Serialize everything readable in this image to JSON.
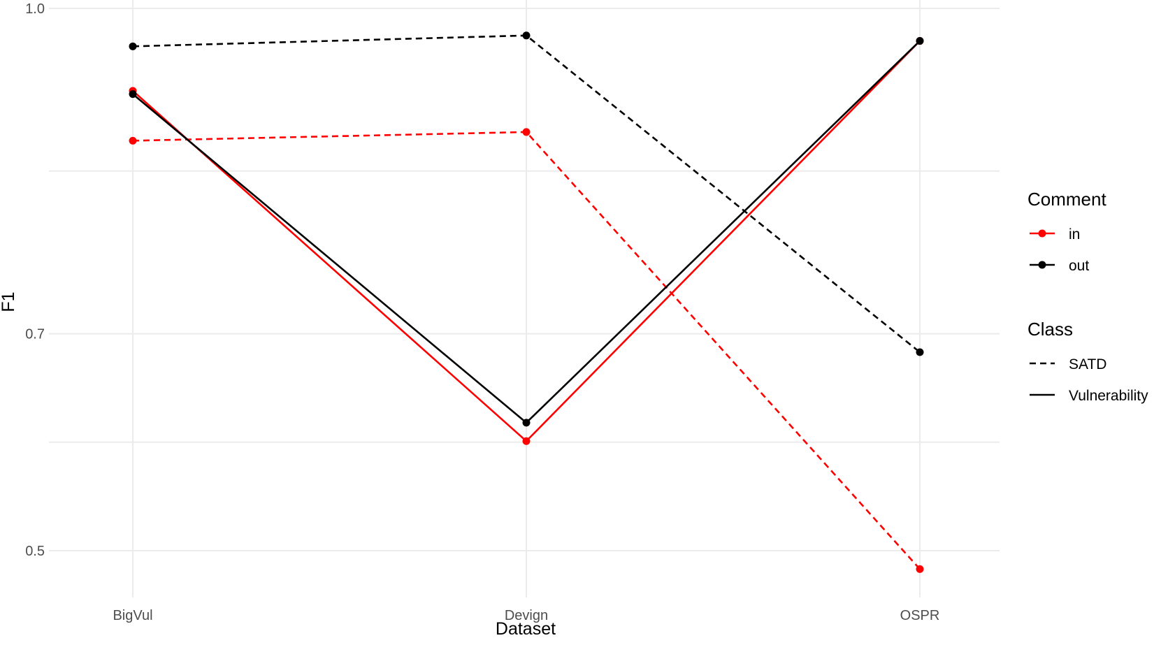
{
  "chart_data": {
    "type": "line",
    "title": "",
    "xlabel": "Dataset",
    "ylabel": "F1",
    "categories": [
      "BigVul",
      "Devign",
      "OSPR"
    ],
    "yticks": [
      0.5,
      0.7,
      1.0
    ],
    "ytick_labels": [
      "0.5",
      "0.7",
      "1.0"
    ],
    "ylim": [
      0.46,
      1.0
    ],
    "grid": true,
    "legend_position": "right",
    "colors": {
      "in": "#ff0000",
      "out": "#000000"
    },
    "legend": {
      "comment": {
        "title": "Comment",
        "items": [
          "in",
          "out"
        ]
      },
      "class": {
        "title": "Class",
        "items": [
          "SATD",
          "Vulnerability"
        ]
      }
    },
    "series": [
      {
        "comment": "in",
        "class": "SATD",
        "values": [
          0.878,
          0.886,
          0.483
        ]
      },
      {
        "comment": "out",
        "class": "SATD",
        "values": [
          0.965,
          0.975,
          0.683
        ]
      },
      {
        "comment": "in",
        "class": "Vulnerability",
        "values": [
          0.924,
          0.601,
          0.97
        ]
      },
      {
        "comment": "out",
        "class": "Vulnerability",
        "values": [
          0.921,
          0.618,
          0.97
        ]
      }
    ]
  }
}
